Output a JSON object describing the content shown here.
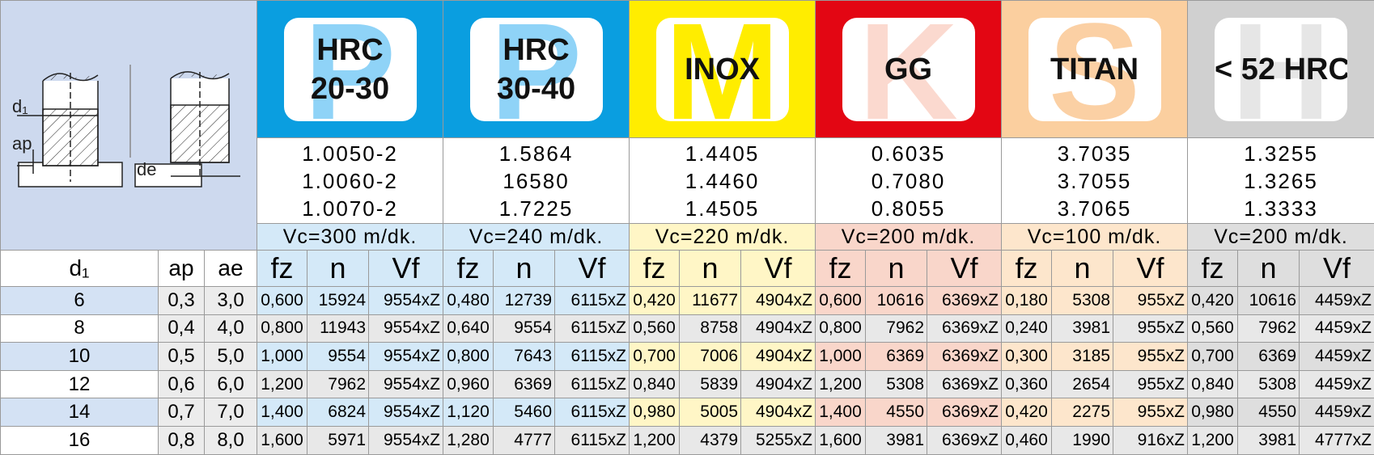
{
  "diagram": {
    "labels": [
      "d₁",
      "ap",
      "de"
    ]
  },
  "left_headers": [
    "d₁",
    "ap",
    "ae"
  ],
  "sub_headers": [
    "fz",
    "n",
    "Vf"
  ],
  "groups": [
    {
      "letter": "P",
      "title": [
        "HRC",
        "20-30"
      ],
      "materials": [
        "1.0050-2",
        "1.0060-2",
        "1.0070-2"
      ],
      "vc": "Vc=300 m/dk."
    },
    {
      "letter": "P",
      "title": [
        "HRC",
        "30-40"
      ],
      "materials": [
        "1.5864",
        "16580",
        "1.7225"
      ],
      "vc": "Vc=240 m/dk."
    },
    {
      "letter": "M",
      "title": [
        "INOX"
      ],
      "materials": [
        "1.4405",
        "1.4460",
        "1.4505"
      ],
      "vc": "Vc=220 m/dk."
    },
    {
      "letter": "K",
      "title": [
        "GG"
      ],
      "materials": [
        "0.6035",
        "0.7080",
        "0.8055"
      ],
      "vc": "Vc=200 m/dk."
    },
    {
      "letter": "S",
      "title": [
        "TITAN"
      ],
      "materials": [
        "3.7035",
        "3.7055",
        "3.7065"
      ],
      "vc": "Vc=100 m/dk."
    },
    {
      "letter": "H",
      "title": [
        "< 52 HRC"
      ],
      "materials": [
        "1.3255",
        "1.3265",
        "1.3333"
      ],
      "vc": "Vc=200 m/dk."
    }
  ],
  "rows": [
    {
      "d1": "6",
      "ap": "0,3",
      "ae": "3,0",
      "cells": [
        [
          "0,600",
          "15924",
          "9554xZ"
        ],
        [
          "0,480",
          "12739",
          "6115xZ"
        ],
        [
          "0,420",
          "11677",
          "4904xZ"
        ],
        [
          "0,600",
          "10616",
          "6369xZ"
        ],
        [
          "0,180",
          "5308",
          "955xZ"
        ],
        [
          "0,420",
          "10616",
          "4459xZ"
        ]
      ]
    },
    {
      "d1": "8",
      "ap": "0,4",
      "ae": "4,0",
      "cells": [
        [
          "0,800",
          "11943",
          "9554xZ"
        ],
        [
          "0,640",
          "9554",
          "6115xZ"
        ],
        [
          "0,560",
          "8758",
          "4904xZ"
        ],
        [
          "0,800",
          "7962",
          "6369xZ"
        ],
        [
          "0,240",
          "3981",
          "955xZ"
        ],
        [
          "0,560",
          "7962",
          "4459xZ"
        ]
      ]
    },
    {
      "d1": "10",
      "ap": "0,5",
      "ae": "5,0",
      "cells": [
        [
          "1,000",
          "9554",
          "9554xZ"
        ],
        [
          "0,800",
          "7643",
          "6115xZ"
        ],
        [
          "0,700",
          "7006",
          "4904xZ"
        ],
        [
          "1,000",
          "6369",
          "6369xZ"
        ],
        [
          "0,300",
          "3185",
          "955xZ"
        ],
        [
          "0,700",
          "6369",
          "4459xZ"
        ]
      ]
    },
    {
      "d1": "12",
      "ap": "0,6",
      "ae": "6,0",
      "cells": [
        [
          "1,200",
          "7962",
          "9554xZ"
        ],
        [
          "0,960",
          "6369",
          "6115xZ"
        ],
        [
          "0,840",
          "5839",
          "4904xZ"
        ],
        [
          "1,200",
          "5308",
          "6369xZ"
        ],
        [
          "0,360",
          "2654",
          "955xZ"
        ],
        [
          "0,840",
          "5308",
          "4459xZ"
        ]
      ]
    },
    {
      "d1": "14",
      "ap": "0,7",
      "ae": "7,0",
      "cells": [
        [
          "1,400",
          "6824",
          "9554xZ"
        ],
        [
          "1,120",
          "5460",
          "6115xZ"
        ],
        [
          "0,980",
          "5005",
          "4904xZ"
        ],
        [
          "1,400",
          "4550",
          "6369xZ"
        ],
        [
          "0,420",
          "2275",
          "955xZ"
        ],
        [
          "0,980",
          "4550",
          "4459xZ"
        ]
      ]
    },
    {
      "d1": "16",
      "ap": "0,8",
      "ae": "8,0",
      "cells": [
        [
          "1,600",
          "5971",
          "9554xZ"
        ],
        [
          "1,280",
          "4777",
          "6115xZ"
        ],
        [
          "1,200",
          "4379",
          "5255xZ"
        ],
        [
          "1,600",
          "3981",
          "6369xZ"
        ],
        [
          "0,460",
          "1990",
          "916xZ"
        ],
        [
          "1,200",
          "3981",
          "4777xZ"
        ]
      ]
    }
  ]
}
